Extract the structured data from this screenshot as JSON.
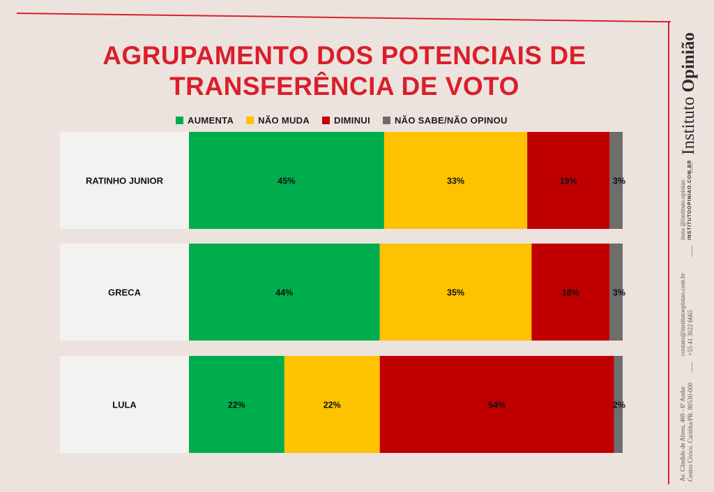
{
  "brand": {
    "part1": "Instituto",
    "part2": "Opinião"
  },
  "social": {
    "insta": "insta @instituto.opiniao",
    "site": "INSTITUTOOPINIAO.COM.BR"
  },
  "contact": {
    "email": "contato@institutoopiniao.com.br",
    "phone": "+55 41 3022 6665"
  },
  "address": {
    "line1": "Av. Cândido de Abreu, 469 - 6º Andar",
    "line2": "Centro Cívico. Curitiba/PR. 80530-000"
  },
  "chart_data": {
    "type": "bar",
    "stacked": true,
    "orientation": "horizontal",
    "title_line1": "AGRUPAMENTO DOS POTENCIAIS DE",
    "title_line2": "TRANSFERÊNCIA DE VOTO",
    "categories": [
      "RATINHO JUNIOR",
      "GRECA",
      "LULA"
    ],
    "series": [
      {
        "name": "AUMENTA",
        "color": "#00ad4c",
        "values": [
          45,
          44,
          22
        ],
        "labels": [
          "45%",
          "44%",
          "22%"
        ]
      },
      {
        "name": "NÃO MUDA",
        "color": "#fdc200",
        "values": [
          33,
          35,
          22
        ],
        "labels": [
          "33%",
          "35%",
          "22%"
        ]
      },
      {
        "name": "DIMINUI",
        "color": "#c00000",
        "values": [
          19,
          18,
          54
        ],
        "labels": [
          "19%",
          "18%",
          "54%"
        ]
      },
      {
        "name": "NÃO SABE/NÃO OPINOU",
        "color": "#6d6d6d",
        "values": [
          3,
          3,
          2
        ],
        "labels": [
          "3%",
          "3%",
          "2%"
        ]
      }
    ],
    "xlim": [
      0,
      100
    ],
    "grid": false,
    "legend_position": "top"
  }
}
